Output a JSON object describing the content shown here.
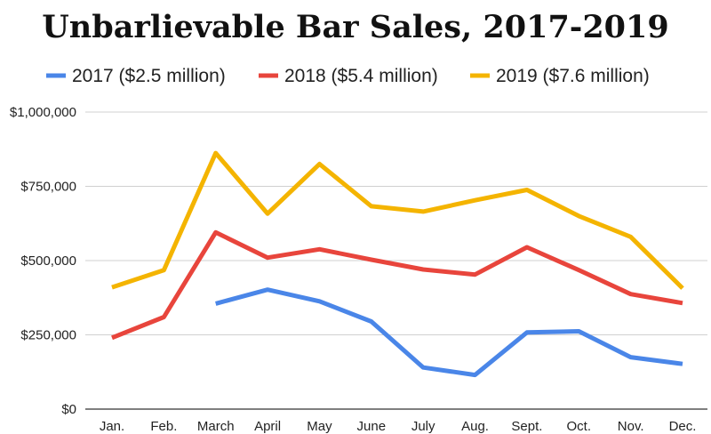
{
  "chart_data": {
    "type": "line",
    "title": "Unbarlievable Bar Sales, 2017-2019",
    "xlabel": "",
    "ylabel": "",
    "categories": [
      "Jan.",
      "Feb.",
      "March",
      "April",
      "May",
      "June",
      "July",
      "Aug.",
      "Sept.",
      "Oct.",
      "Nov.",
      "Dec."
    ],
    "ylim": [
      0,
      1000000
    ],
    "yticks": [
      0,
      250000,
      500000,
      750000,
      1000000
    ],
    "ytick_labels": [
      "$0",
      "$250,000",
      "$500,000",
      "$750,000",
      "$1,000,000"
    ],
    "grid": true,
    "legend_position": "top",
    "series": [
      {
        "name": "2017 ($2.5 million)",
        "color": "#4a86e8",
        "values": [
          null,
          null,
          355000,
          402000,
          363000,
          295000,
          140000,
          115000,
          258000,
          262000,
          175000,
          152000
        ]
      },
      {
        "name": "2018 ($5.4 million)",
        "color": "#e8453c",
        "values": [
          240000,
          310000,
          595000,
          510000,
          538000,
          503000,
          470000,
          453000,
          545000,
          468000,
          387000,
          357000
        ]
      },
      {
        "name": "2019 ($7.6 million)",
        "color": "#f4b400",
        "values": [
          410000,
          468000,
          862000,
          658000,
          825000,
          683000,
          665000,
          703000,
          738000,
          650000,
          580000,
          407000
        ]
      }
    ]
  }
}
